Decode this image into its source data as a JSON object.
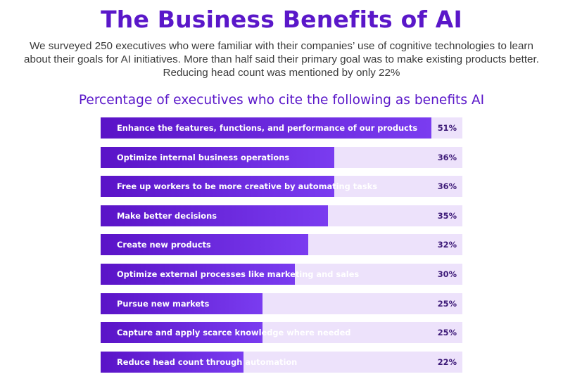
{
  "header": {
    "title": "The Business Benefits of AI",
    "description": "We surveyed 250 executives who were familiar with their companies’ use of cognitive technologies to learn about their goals for AI initiatives. More than half said their primary goal was to make existing products better. Reducing head count was mentioned by only 22%"
  },
  "colors": {
    "title": "#5a17c9",
    "subtitle": "#5a17c9",
    "bar_start": "#5a13c7",
    "bar_end": "#7a3cf0",
    "track": "#ede2fb",
    "value_text": "#3d1a78"
  },
  "chart_data": {
    "type": "bar",
    "orientation": "horizontal",
    "title": "Percentage of executives who cite the following as benefits AI",
    "unit": "%",
    "categories": [
      "Enhance the features, functions, and performance of our products",
      "Optimize internal business operations",
      "Free up workers to be more creative by automating tasks",
      "Make better decisions",
      "Create new products",
      "Optimize external processes like marketing and sales",
      "Pursue new markets",
      "Capture and apply scarce knowledge where needed",
      "Reduce head count through automation"
    ],
    "values": [
      51,
      36,
      36,
      35,
      32,
      30,
      25,
      25,
      22
    ],
    "value_labels": [
      "51%",
      "36%",
      "36%",
      "35%",
      "32%",
      "30%",
      "25%",
      "25%",
      "22%"
    ]
  }
}
